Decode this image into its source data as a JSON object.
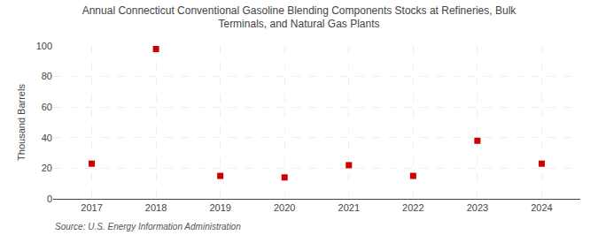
{
  "chart_data": {
    "type": "scatter",
    "title": "Annual Connecticut Conventional Gasoline Blending Components Stocks at Refineries, Bulk\nTerminals, and Natural Gas Plants",
    "ylabel": "Thousand Barrels",
    "annotations": [
      "Source: U.S. Energy Information Administration"
    ],
    "x": [
      2017,
      2018,
      2019,
      2020,
      2021,
      2022,
      2023,
      2024
    ],
    "values": [
      23,
      98,
      15,
      14,
      22,
      15,
      38,
      23
    ],
    "color": "#cc0000",
    "marker": "square",
    "xlim": [
      2016.4,
      2024.6
    ],
    "xticks": [
      2017,
      2018,
      2019,
      2020,
      2021,
      2022,
      2023,
      2024
    ],
    "ylim": [
      0,
      100
    ],
    "yticks": [
      0,
      20,
      40,
      60,
      80,
      100
    ],
    "grid": true
  }
}
